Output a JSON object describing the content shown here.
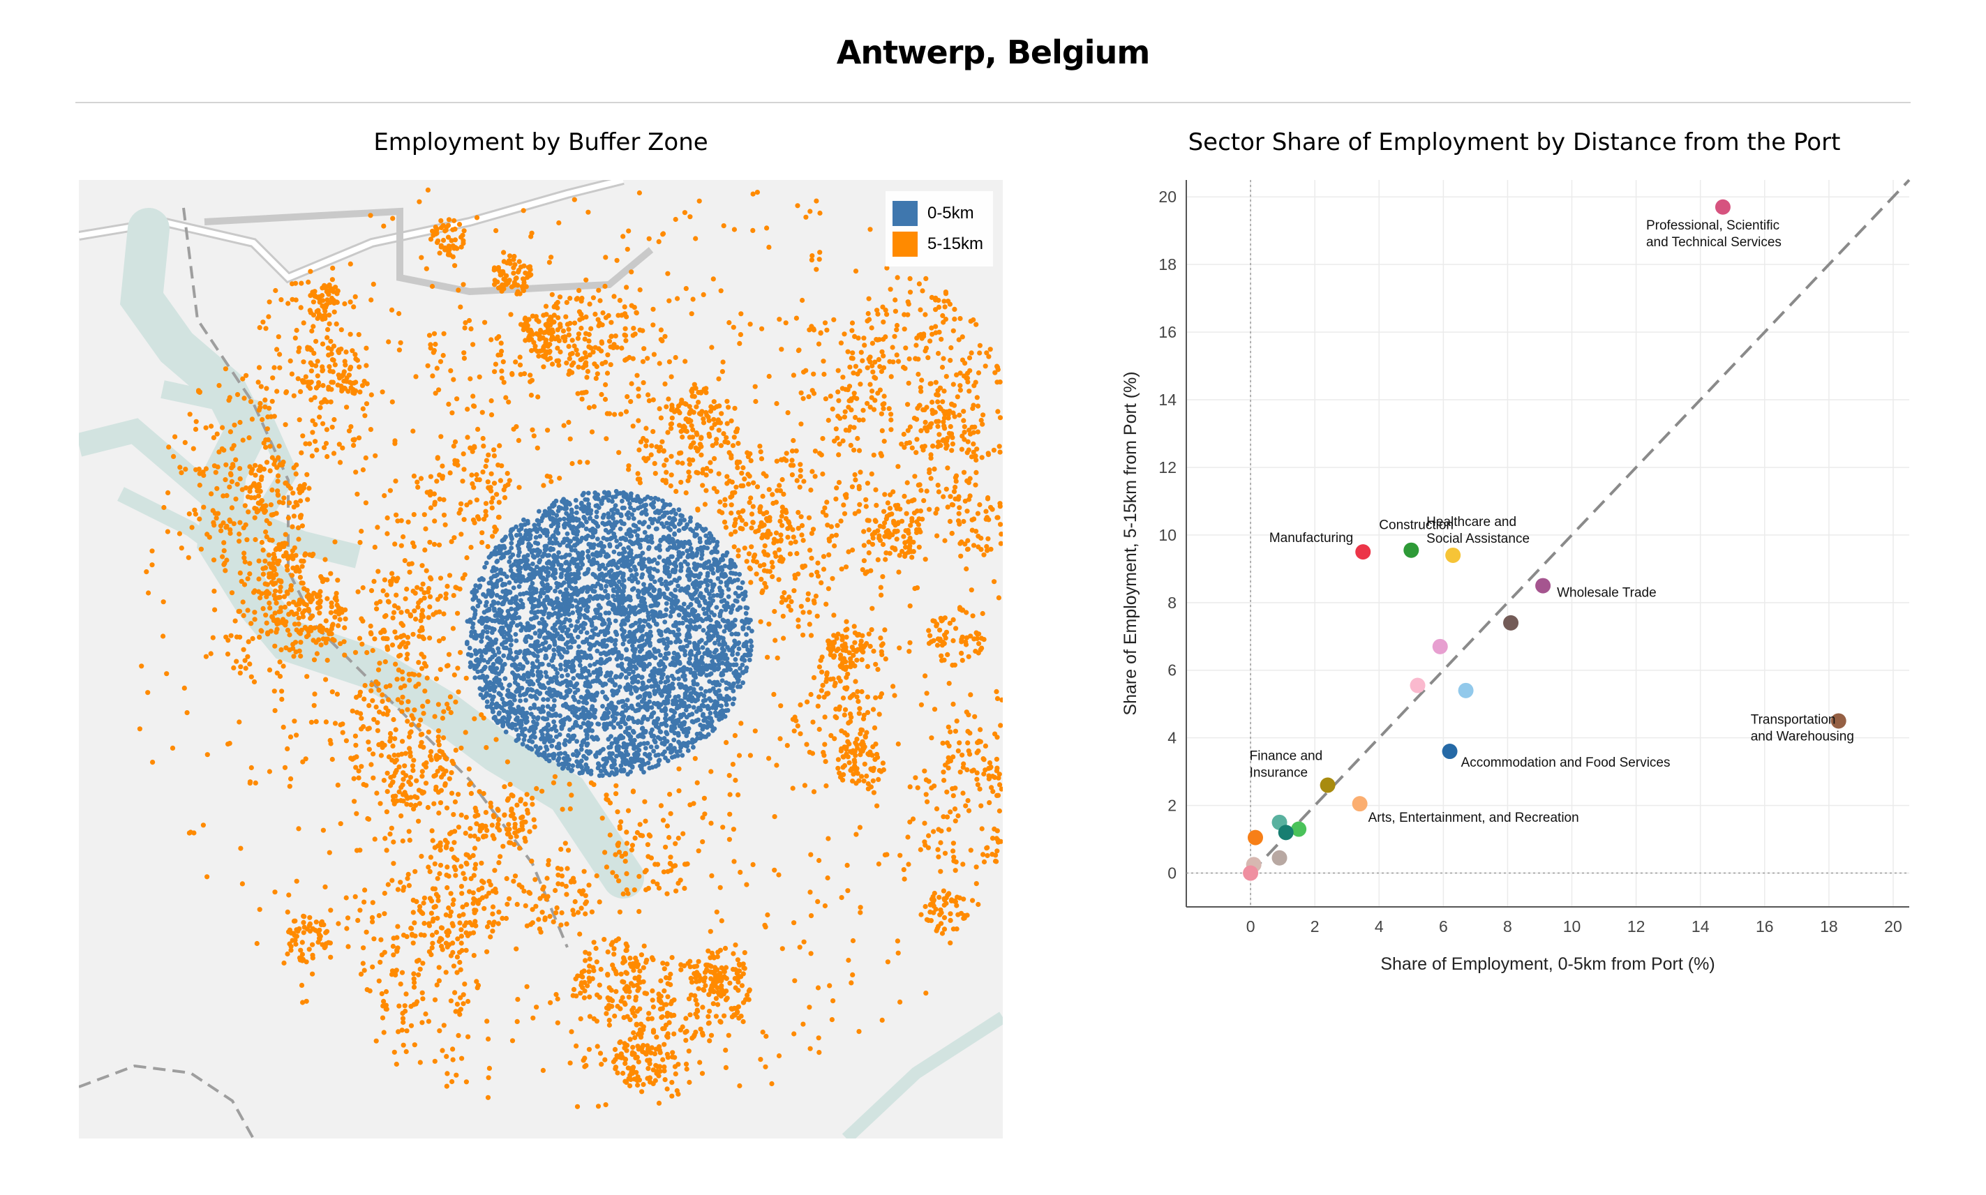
{
  "page": {
    "title": "Antwerp, Belgium"
  },
  "map": {
    "title": "Employment by Buffer Zone",
    "legend": [
      {
        "label": "0-5km",
        "color": "#3f77ae"
      },
      {
        "label": "5-15km",
        "color": "#ff8a00"
      }
    ],
    "colors": {
      "background": "#f1f1f1",
      "water": "#d2e3e0",
      "border": "#a6a6a6"
    }
  },
  "chart_data": {
    "type": "scatter",
    "title": "Sector Share of Employment by Distance from the Port",
    "xlabel": "Share of Employment, 0-5km from Port (%)",
    "ylabel": "Share of Employment, 5-15km from Port (%)",
    "xlim": [
      -2,
      20.5
    ],
    "ylim": [
      -1,
      20.5
    ],
    "xticks": [
      0,
      2,
      4,
      6,
      8,
      10,
      12,
      14,
      16,
      18,
      20
    ],
    "yticks": [
      0,
      2,
      4,
      6,
      8,
      10,
      12,
      14,
      16,
      18,
      20
    ],
    "grid": true,
    "reference_line": "y = x",
    "points": [
      {
        "x": 14.7,
        "y": 19.7,
        "color": "#d6537f",
        "label": [
          "Professional, Scientific",
          "and Technical Services"
        ]
      },
      {
        "x": 3.5,
        "y": 9.5,
        "color": "#ec3548",
        "label": [
          "Manufacturing"
        ]
      },
      {
        "x": 5.0,
        "y": 9.55,
        "color": "#2e9a37",
        "label": [
          "Construction"
        ]
      },
      {
        "x": 6.3,
        "y": 9.4,
        "color": "#f6c437",
        "label": [
          "Healthcare and",
          "Social Assistance"
        ]
      },
      {
        "x": 9.1,
        "y": 8.5,
        "color": "#a5558f",
        "label": [
          "Wholesale Trade"
        ]
      },
      {
        "x": 8.1,
        "y": 7.4,
        "color": "#735b57",
        "label": []
      },
      {
        "x": 5.9,
        "y": 6.7,
        "color": "#e79fd0",
        "label": []
      },
      {
        "x": 5.2,
        "y": 5.55,
        "color": "#fab9ce",
        "label": []
      },
      {
        "x": 6.7,
        "y": 5.4,
        "color": "#92c9eb",
        "label": []
      },
      {
        "x": 18.3,
        "y": 4.5,
        "color": "#956044",
        "label": [
          "Transportation",
          "and Warehousing"
        ]
      },
      {
        "x": 6.2,
        "y": 3.6,
        "color": "#2569a6",
        "label": [
          "Accommodation and Food Services"
        ]
      },
      {
        "x": 2.4,
        "y": 2.6,
        "color": "#a88b0f",
        "label": [
          "Finance and",
          "Insurance"
        ]
      },
      {
        "x": 3.4,
        "y": 2.05,
        "color": "#fbae70",
        "label": [
          "Arts, Entertainment, and Recreation"
        ]
      },
      {
        "x": 0.9,
        "y": 1.5,
        "color": "#59b19f",
        "label": []
      },
      {
        "x": 1.5,
        "y": 1.3,
        "color": "#4ac25a",
        "label": []
      },
      {
        "x": 1.1,
        "y": 1.2,
        "color": "#177e71",
        "label": []
      },
      {
        "x": 0.15,
        "y": 1.05,
        "color": "#f77f17",
        "label": []
      },
      {
        "x": 0.9,
        "y": 0.45,
        "color": "#b8a8a2",
        "label": []
      },
      {
        "x": 0.1,
        "y": 0.25,
        "color": "#d7b8b1",
        "label": []
      },
      {
        "x": 0.0,
        "y": 0.0,
        "color": "#ef8fa0",
        "label": []
      }
    ]
  }
}
